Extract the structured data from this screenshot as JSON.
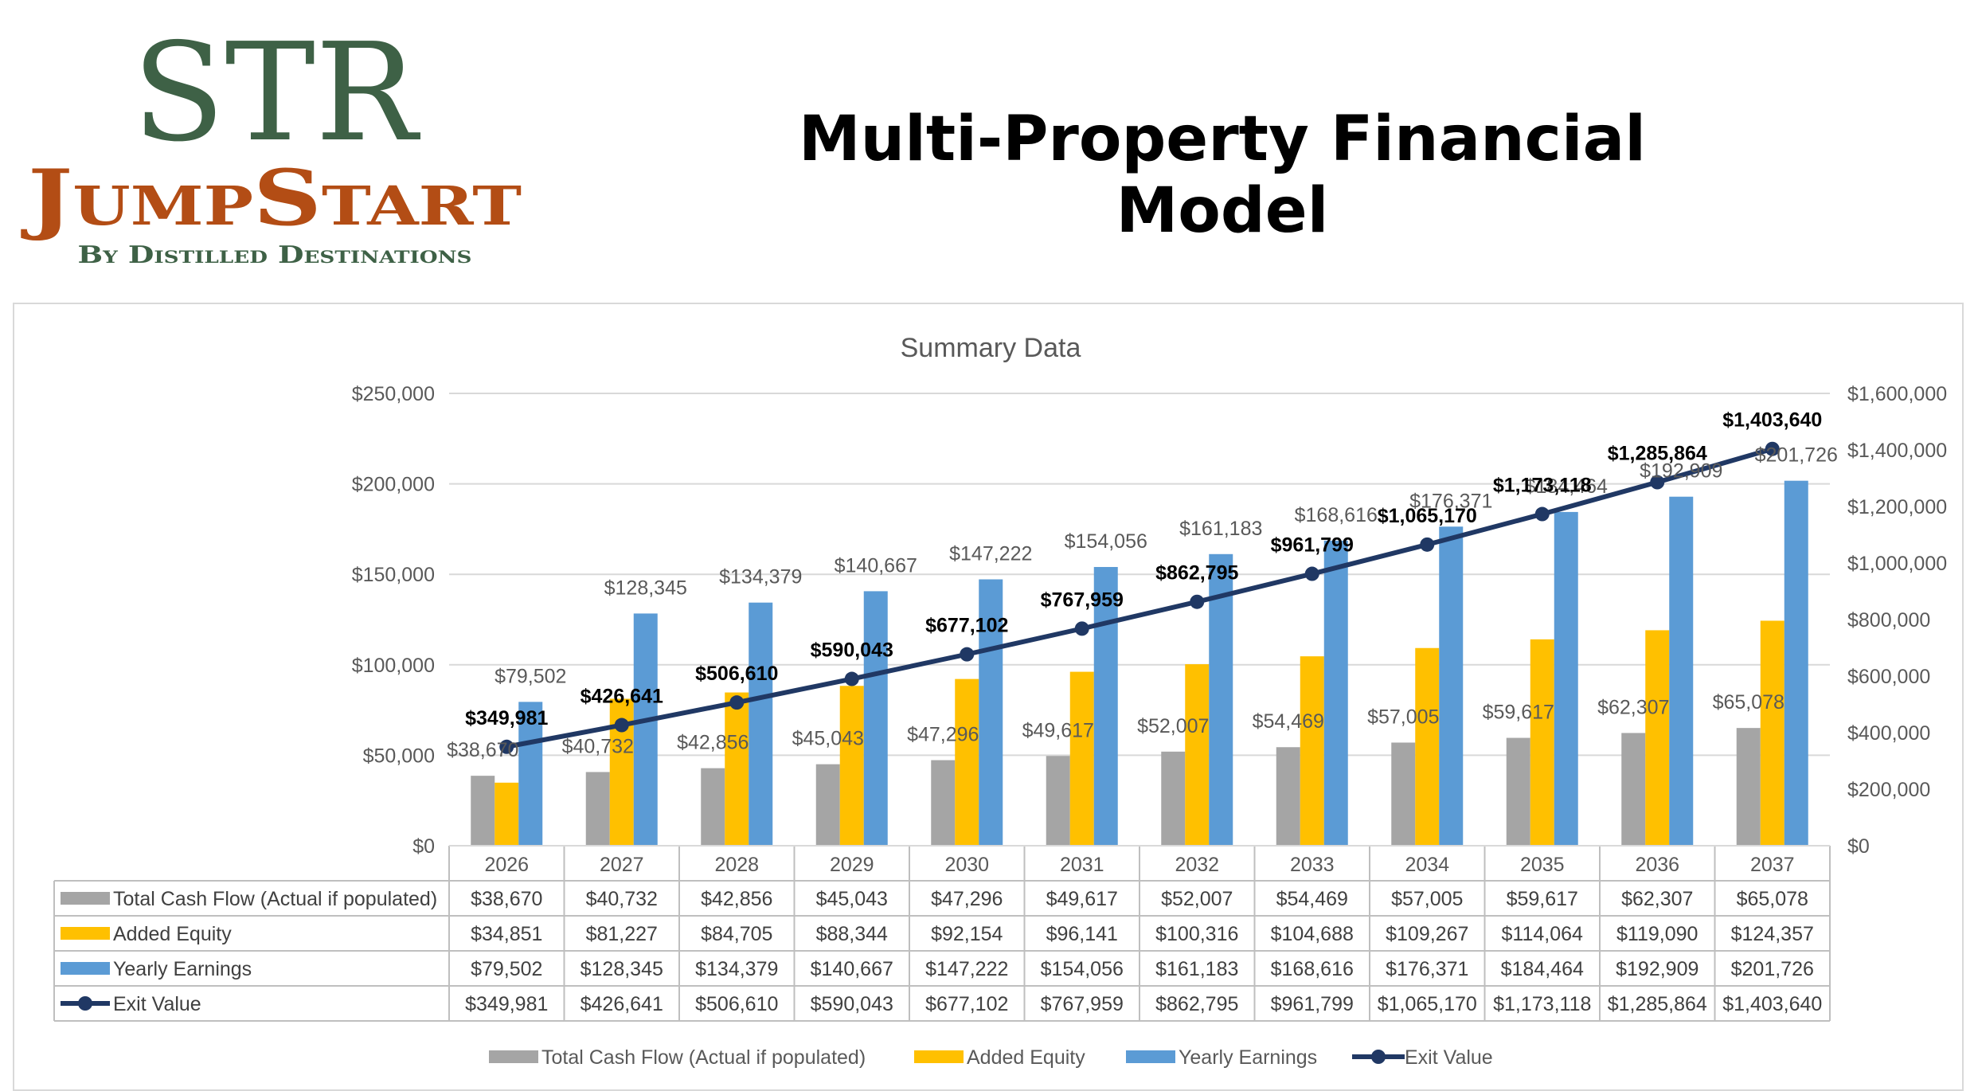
{
  "logo": {
    "line1": "STR",
    "line2": "JumpStart",
    "line3": "By Distilled Destinations",
    "colors": {
      "green": "#3e6146",
      "orange": "#b34d15"
    }
  },
  "page_title": "Multi-Property Financial Model",
  "chart_data": {
    "type": "bar",
    "title": "Summary Data",
    "categories": [
      "2026",
      "2027",
      "2028",
      "2029",
      "2030",
      "2031",
      "2032",
      "2033",
      "2034",
      "2035",
      "2036",
      "2037"
    ],
    "y_left": {
      "min": 0,
      "max": 250000,
      "step": 50000,
      "tick_labels": [
        "$0",
        "$50,000",
        "$100,000",
        "$150,000",
        "$200,000",
        "$250,000"
      ]
    },
    "y_right": {
      "min": 0,
      "max": 1600000,
      "step": 200000,
      "tick_labels": [
        "$0",
        "$200,000",
        "$400,000",
        "$600,000",
        "$800,000",
        "$1,000,000",
        "$1,200,000",
        "$1,400,000",
        "$1,600,000"
      ]
    },
    "grid": true,
    "legend_position": "bottom",
    "series": [
      {
        "name": "Total Cash Flow (Actual if populated)",
        "kind": "bar",
        "axis": "left",
        "color": "#a5a5a5",
        "values": [
          38670,
          40732,
          42856,
          45043,
          47296,
          49617,
          52007,
          54469,
          57005,
          59617,
          62307,
          65078
        ],
        "labels": [
          "$38,670",
          "$40,732",
          "$42,856",
          "$45,043",
          "$47,296",
          "$49,617",
          "$52,007",
          "$54,469",
          "$57,005",
          "$59,617",
          "$62,307",
          "$65,078"
        ]
      },
      {
        "name": "Added Equity",
        "kind": "bar",
        "axis": "left",
        "color": "#ffc000",
        "values": [
          34851,
          81227,
          84705,
          88344,
          92154,
          96141,
          100316,
          104688,
          109267,
          114064,
          119090,
          124357
        ],
        "labels": [
          "$34,851",
          "$81,227",
          "$84,705",
          "$88,344",
          "$92,154",
          "$96,141",
          "$100,316",
          "$104,688",
          "$109,267",
          "$114,064",
          "$119,090",
          "$124,357"
        ]
      },
      {
        "name": "Yearly Earnings",
        "kind": "bar",
        "axis": "left",
        "color": "#5b9bd5",
        "values": [
          79502,
          128345,
          134379,
          140667,
          147222,
          154056,
          161183,
          168616,
          176371,
          184464,
          192909,
          201726
        ],
        "labels": [
          "$79,502",
          "$128,345",
          "$134,379",
          "$140,667",
          "$147,222",
          "$154,056",
          "$161,183",
          "$168,616",
          "$176,371",
          "$184,464",
          "$192,909",
          "$201,726"
        ]
      },
      {
        "name": "Exit Value",
        "kind": "line",
        "axis": "right",
        "color": "#203864",
        "values": [
          349981,
          426641,
          506610,
          590043,
          677102,
          767959,
          862795,
          961799,
          1065170,
          1173118,
          1285864,
          1403640
        ],
        "labels": [
          "$349,981",
          "$426,641",
          "$506,610",
          "$590,043",
          "$677,102",
          "$767,959",
          "$862,795",
          "$961,799",
          "$1,065,170",
          "$1,173,118",
          "$1,285,864",
          "$1,403,640"
        ]
      }
    ]
  }
}
